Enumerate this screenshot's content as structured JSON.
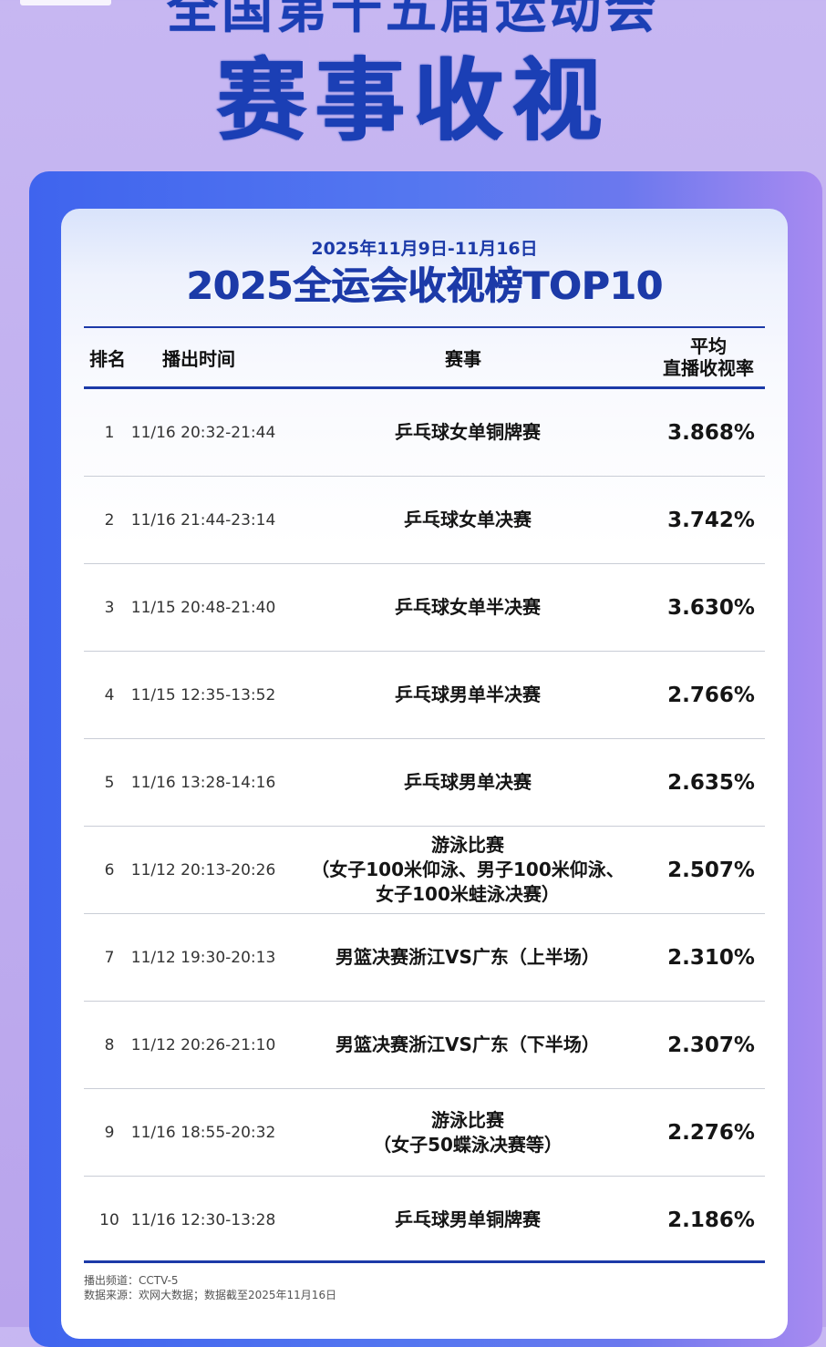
{
  "banner": {
    "line1": "全国第十五届运动会",
    "line2": "赛事收视"
  },
  "card": {
    "date_range": "2025年11月9日-11月16日",
    "title": "2025全运会收视榜TOP10"
  },
  "table": {
    "headers": {
      "rank": "排名",
      "time": "播出时间",
      "event": "赛事",
      "rating_line1": "平均",
      "rating_line2": "直播收视率"
    },
    "rows": [
      {
        "rank": "1",
        "time": "11/16 20:32-21:44",
        "event": [
          "乒乓球女单铜牌赛"
        ],
        "rating": "3.868%"
      },
      {
        "rank": "2",
        "time": "11/16 21:44-23:14",
        "event": [
          "乒乓球女单决赛"
        ],
        "rating": "3.742%"
      },
      {
        "rank": "3",
        "time": "11/15 20:48-21:40",
        "event": [
          "乒乓球女单半决赛"
        ],
        "rating": "3.630%"
      },
      {
        "rank": "4",
        "time": "11/15 12:35-13:52",
        "event": [
          "乒乓球男单半决赛"
        ],
        "rating": "2.766%"
      },
      {
        "rank": "5",
        "time": "11/16 13:28-14:16",
        "event": [
          "乒乓球男单决赛"
        ],
        "rating": "2.635%"
      },
      {
        "rank": "6",
        "time": "11/12 20:13-20:26",
        "event": [
          "游泳比赛",
          "（女子100米仰泳、男子100米仰泳、",
          "女子100米蛙泳决赛）"
        ],
        "rating": "2.507%"
      },
      {
        "rank": "7",
        "time": "11/12 19:30-20:13",
        "event": [
          "男篮决赛浙江VS广东（上半场）"
        ],
        "rating": "2.310%"
      },
      {
        "rank": "8",
        "time": "11/12 20:26-21:10",
        "event": [
          "男篮决赛浙江VS广东（下半场）"
        ],
        "rating": "2.307%"
      },
      {
        "rank": "9",
        "time": "11/16 18:55-20:32",
        "event": [
          "游泳比赛",
          "（女子50蝶泳决赛等）"
        ],
        "rating": "2.276%"
      },
      {
        "rank": "10",
        "time": "11/16 12:30-13:28",
        "event": [
          "乒乓球男单铜牌赛"
        ],
        "rating": "2.186%"
      }
    ]
  },
  "footnote": {
    "channel": "播出频道：CCTV-5",
    "source": "数据来源：欢网大数据；数据截至2025年11月16日"
  }
}
